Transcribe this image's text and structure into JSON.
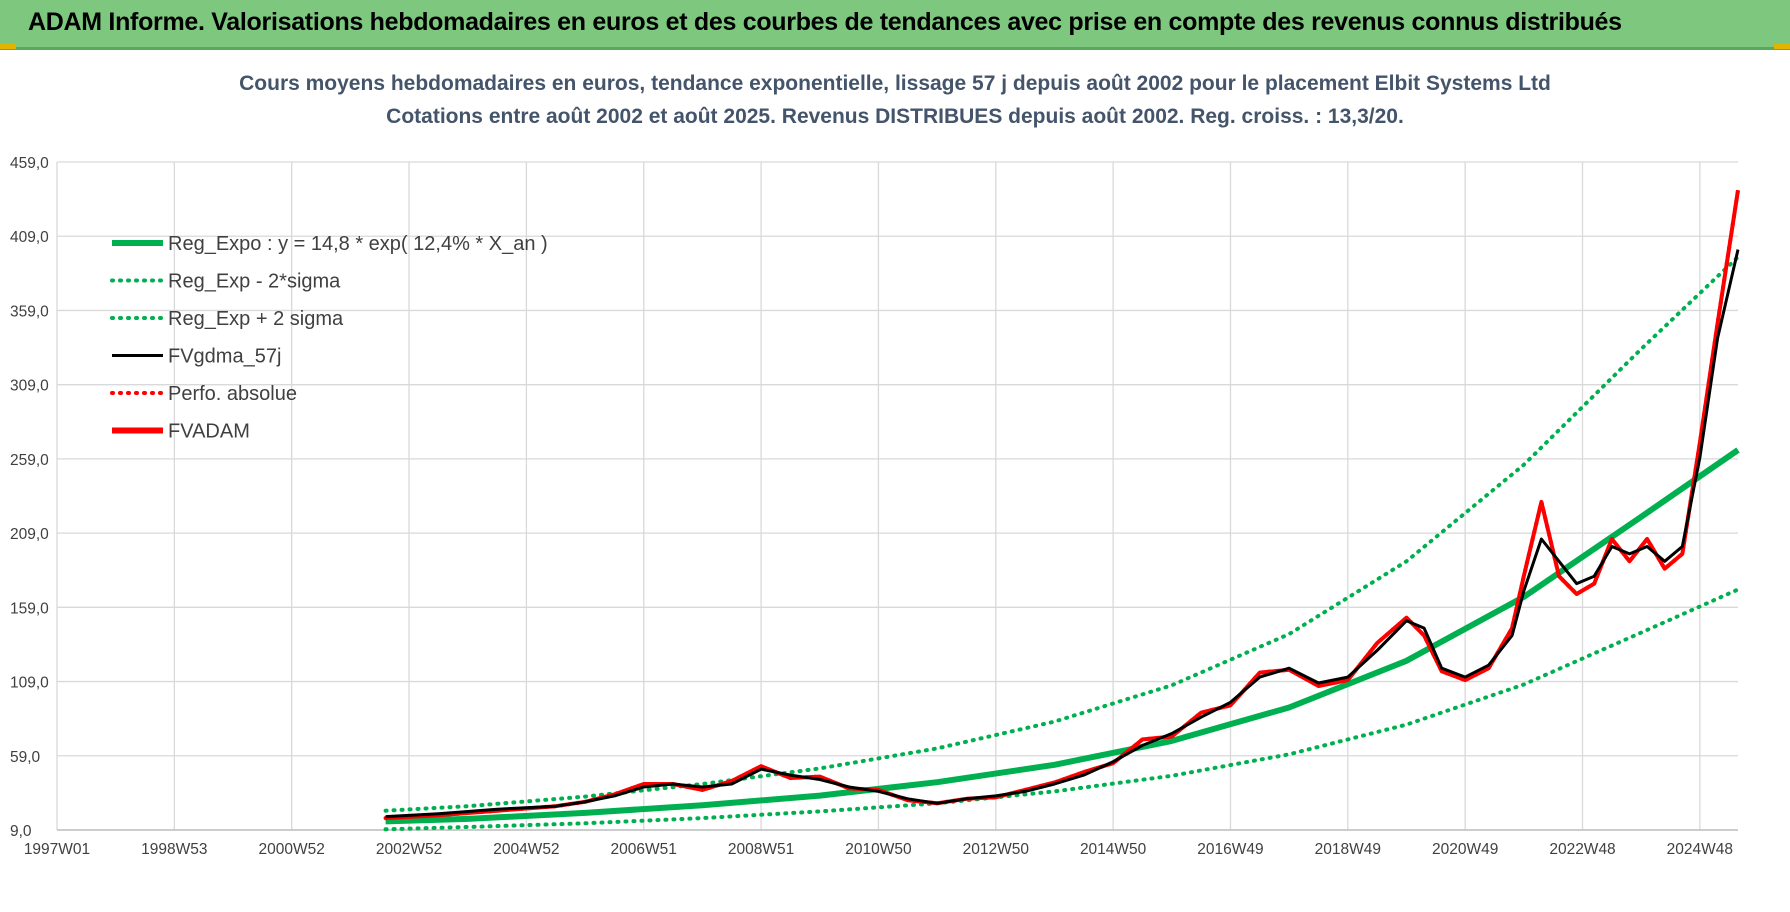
{
  "header": {
    "title": "ADAM Informe. Valorisations hebdomadaires en euros et des courbes de tendances avec prise en compte des revenus connus distribués"
  },
  "colors": {
    "banner": "#7dc77f",
    "reg_green": "#00b050",
    "price_red": "#ff0000",
    "smooth_black": "#000000",
    "grid": "#d9d9d9"
  },
  "chart_data": {
    "type": "line",
    "title": [
      "Cours moyens hebdomadaires en euros, tendance exponentielle, lissage 57 j depuis août 2002 pour le placement Elbit Systems Ltd",
      "Cotations entre août 2002 et août 2025. Revenus DISTRIBUES depuis août 2002. Reg. croiss. : 13,3/20."
    ],
    "xlabel": "",
    "ylabel": "",
    "ylim": [
      9,
      459
    ],
    "xlim": [
      1997.0,
      2025.65
    ],
    "y_ticks": [
      "9,0",
      "59,0",
      "109,0",
      "159,0",
      "209,0",
      "259,0",
      "309,0",
      "359,0",
      "409,0",
      "459,0"
    ],
    "x_ticks": [
      {
        "label": "1997W01",
        "x": 1997.0
      },
      {
        "label": "1998W53",
        "x": 1999.0
      },
      {
        "label": "2000W52",
        "x": 2001.0
      },
      {
        "label": "2002W52",
        "x": 2003.0
      },
      {
        "label": "2004W52",
        "x": 2005.0
      },
      {
        "label": "2006W51",
        "x": 2007.0
      },
      {
        "label": "2008W51",
        "x": 2009.0
      },
      {
        "label": "2010W50",
        "x": 2011.0
      },
      {
        "label": "2012W50",
        "x": 2013.0
      },
      {
        "label": "2014W50",
        "x": 2015.0
      },
      {
        "label": "2016W49",
        "x": 2017.0
      },
      {
        "label": "2018W49",
        "x": 2019.0
      },
      {
        "label": "2020W49",
        "x": 2021.0
      },
      {
        "label": "2022W48",
        "x": 2023.0
      },
      {
        "label": "2024W48",
        "x": 2025.0
      }
    ],
    "grid": true,
    "legend_position": "top-left",
    "legend": [
      {
        "label": "Reg_Expo : y = 14,8 * exp( 12,4% *  X_an )",
        "style": "solid-thick",
        "color": "#00b050"
      },
      {
        "label": "Reg_Exp - 2*sigma",
        "style": "dotted",
        "color": "#00b050"
      },
      {
        "label": "Reg_Exp + 2 sigma",
        "style": "dotted",
        "color": "#00b050"
      },
      {
        "label": "FVgdma_57j",
        "style": "solid",
        "color": "#000000"
      },
      {
        "label": "Perfo. absolue",
        "style": "dotted",
        "color": "#ff0000"
      },
      {
        "label": "FVADAM",
        "style": "solid-thick",
        "color": "#ff0000"
      }
    ],
    "series": [
      {
        "name": "Reg_Expo : y = 14,8 * exp( 12,4% *  X_an )",
        "x": [
          2002.6,
          2004.0,
          2006.0,
          2008.0,
          2010.0,
          2012.0,
          2014.0,
          2016.0,
          2018.0,
          2020.0,
          2022.0,
          2024.0,
          2025.65
        ],
        "values": [
          14.8,
          16.5,
          20.5,
          25.7,
          32.2,
          41.2,
          52.9,
          69.0,
          91.5,
          123.0,
          166.0,
          220.0,
          265.0
        ]
      },
      {
        "name": "Reg_Exp - 2*sigma",
        "x": [
          2002.6,
          2004.0,
          2006.0,
          2008.0,
          2010.0,
          2012.0,
          2014.0,
          2016.0,
          2018.0,
          2020.0,
          2022.0,
          2024.0,
          2025.65
        ],
        "values": [
          9.5,
          11.0,
          13.5,
          17.0,
          21.5,
          27.0,
          35.0,
          45.5,
          60.0,
          80.0,
          107.0,
          142.0,
          171.0
        ]
      },
      {
        "name": "Reg_Exp + 2 sigma",
        "x": [
          2002.6,
          2004.0,
          2006.0,
          2008.0,
          2010.0,
          2012.0,
          2014.0,
          2016.0,
          2018.0,
          2020.0,
          2022.0,
          2024.0,
          2025.65
        ],
        "values": [
          22.0,
          25.0,
          31.5,
          40.0,
          50.5,
          64.0,
          82.0,
          106.5,
          141.0,
          190.0,
          255.0,
          333.0,
          395.0
        ]
      },
      {
        "name": "FVgdma_57j",
        "x": [
          2002.6,
          2003.5,
          2004.5,
          2005.5,
          2006.0,
          2006.5,
          2007.0,
          2007.5,
          2008.0,
          2008.5,
          2009.0,
          2009.5,
          2010.0,
          2010.5,
          2011.0,
          2011.5,
          2012.0,
          2012.5,
          2013.0,
          2013.5,
          2014.0,
          2014.5,
          2015.0,
          2015.5,
          2016.0,
          2016.5,
          2017.0,
          2017.5,
          2018.0,
          2018.5,
          2019.0,
          2019.5,
          2020.0,
          2020.3,
          2020.6,
          2021.0,
          2021.4,
          2021.8,
          2022.0,
          2022.3,
          2022.6,
          2022.9,
          2023.2,
          2023.5,
          2023.8,
          2024.1,
          2024.4,
          2024.7,
          2025.0,
          2025.3,
          2025.65
        ],
        "values": [
          18,
          20,
          23,
          25,
          28,
          32,
          38,
          40,
          38,
          40,
          50,
          46,
          43,
          38,
          35,
          30,
          27,
          30,
          32,
          35,
          40,
          46,
          55,
          66,
          74,
          85,
          95,
          112,
          118,
          108,
          112,
          130,
          150,
          145,
          118,
          112,
          120,
          140,
          170,
          205,
          190,
          175,
          180,
          200,
          195,
          200,
          190,
          200,
          260,
          340,
          400
        ]
      },
      {
        "name": "Perfo. absolue",
        "x": [
          2002.6,
          2003.5,
          2004.5,
          2005.5,
          2006.0,
          2006.5,
          2007.0,
          2007.5,
          2008.0,
          2008.5,
          2009.0,
          2009.5,
          2010.0,
          2010.5,
          2011.0,
          2011.5,
          2012.0,
          2012.5,
          2013.0,
          2013.5,
          2014.0,
          2014.5,
          2015.0,
          2015.5,
          2016.0,
          2016.5,
          2017.0,
          2017.5,
          2018.0,
          2018.5,
          2019.0,
          2019.5,
          2020.0,
          2020.3,
          2020.6,
          2021.0,
          2021.4,
          2021.8,
          2022.0,
          2022.3,
          2022.6,
          2022.9,
          2023.2,
          2023.5,
          2023.8,
          2024.1,
          2024.4,
          2024.7,
          2025.0,
          2025.3,
          2025.65
        ],
        "values": [
          17,
          19,
          22,
          25,
          28,
          33,
          40,
          40,
          36,
          42,
          52,
          44,
          45,
          37,
          36,
          29,
          27,
          30,
          31,
          36,
          41,
          48,
          54,
          70,
          72,
          88,
          93,
          115,
          117,
          106,
          110,
          135,
          152,
          140,
          116,
          110,
          118,
          145,
          180,
          230,
          180,
          168,
          175,
          205,
          190,
          205,
          185,
          195,
          270,
          350,
          440
        ]
      },
      {
        "name": "FVADAM",
        "x": [
          2002.6,
          2003.5,
          2004.5,
          2005.5,
          2006.0,
          2006.5,
          2007.0,
          2007.5,
          2008.0,
          2008.5,
          2009.0,
          2009.5,
          2010.0,
          2010.5,
          2011.0,
          2011.5,
          2012.0,
          2012.5,
          2013.0,
          2013.5,
          2014.0,
          2014.5,
          2015.0,
          2015.5,
          2016.0,
          2016.5,
          2017.0,
          2017.5,
          2018.0,
          2018.5,
          2019.0,
          2019.5,
          2020.0,
          2020.3,
          2020.6,
          2021.0,
          2021.4,
          2021.8,
          2022.0,
          2022.3,
          2022.6,
          2022.9,
          2023.2,
          2023.5,
          2023.8,
          2024.1,
          2024.4,
          2024.7,
          2025.0,
          2025.3,
          2025.65
        ],
        "values": [
          17,
          19,
          22,
          25,
          28,
          33,
          40,
          40,
          36,
          42,
          52,
          44,
          45,
          37,
          36,
          29,
          27,
          30,
          31,
          36,
          41,
          48,
          54,
          70,
          72,
          88,
          93,
          115,
          117,
          106,
          110,
          135,
          152,
          140,
          116,
          110,
          118,
          145,
          180,
          230,
          180,
          168,
          175,
          205,
          190,
          205,
          185,
          195,
          270,
          350,
          440
        ]
      }
    ]
  }
}
